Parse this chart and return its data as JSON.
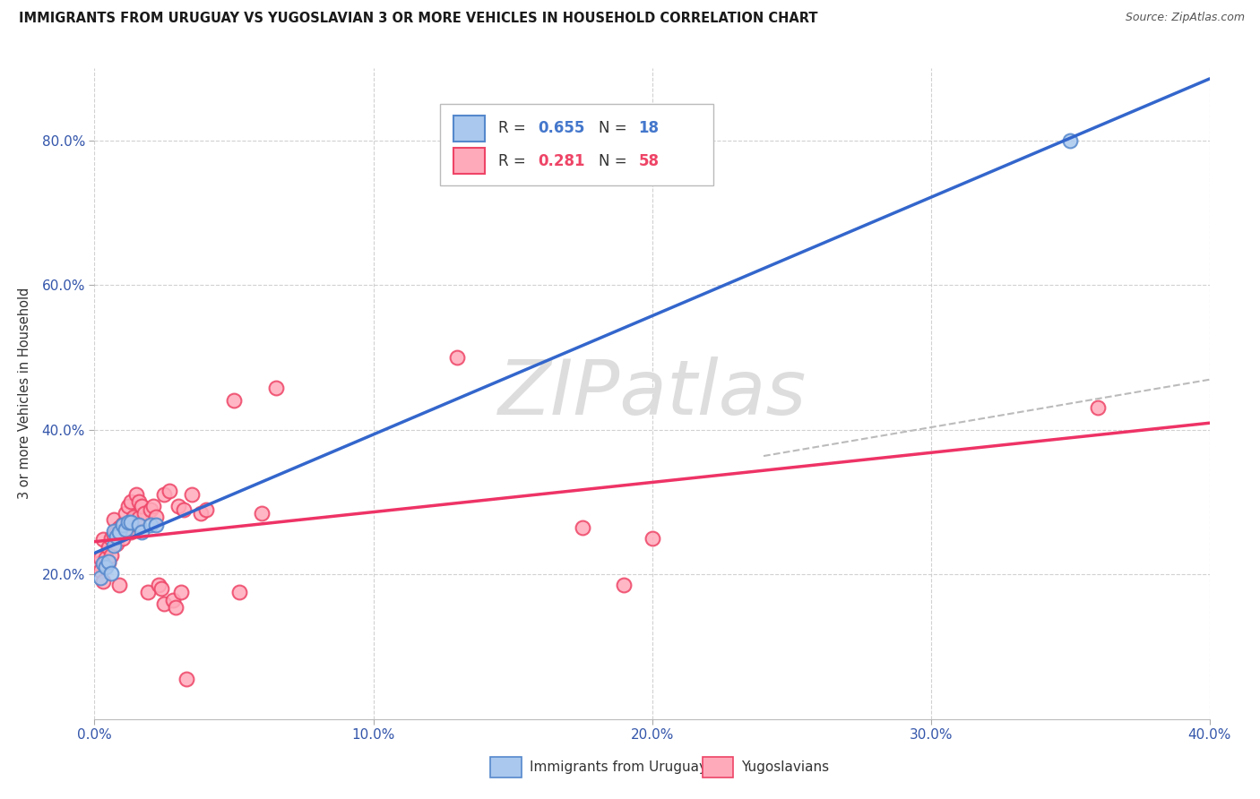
{
  "title": "IMMIGRANTS FROM URUGUAY VS YUGOSLAVIAN 3 OR MORE VEHICLES IN HOUSEHOLD CORRELATION CHART",
  "source": "Source: ZipAtlas.com",
  "ylabel": "3 or more Vehicles in Household",
  "xlim": [
    0.0,
    0.4
  ],
  "ylim": [
    0.0,
    0.9
  ],
  "xtick_vals": [
    0.0,
    0.1,
    0.2,
    0.3,
    0.4
  ],
  "xtick_labels": [
    "0.0%",
    "10.0%",
    "20.0%",
    "30.0%",
    "40.0%"
  ],
  "ytick_vals": [
    0.2,
    0.4,
    0.6,
    0.8
  ],
  "ytick_labels": [
    "20.0%",
    "40.0%",
    "60.0%",
    "80.0%"
  ],
  "blue_edge": "#5588CC",
  "blue_face": "#AAC8EE",
  "pink_edge": "#EE4466",
  "pink_face": "#FFAABB",
  "line_blue": "#3366CC",
  "line_pink": "#EE3366",
  "line_dash": "#BBBBBB",
  "grid_color": "#CCCCCC",
  "bg": "#FFFFFF",
  "watermark_color": "#DDDDDD",
  "legend1_r": "0.655",
  "legend1_n": "18",
  "legend2_r": "0.281",
  "legend2_n": "58",
  "legend_text_color": "#333333",
  "legend_num1_color": "#4477CC",
  "legend_num2_color": "#EE4466",
  "uruguay_x": [
    0.002,
    0.003,
    0.004,
    0.005,
    0.006,
    0.007,
    0.007,
    0.008,
    0.009,
    0.01,
    0.011,
    0.012,
    0.013,
    0.016,
    0.017,
    0.02,
    0.022,
    0.35
  ],
  "uruguay_y": [
    0.195,
    0.215,
    0.21,
    0.218,
    0.202,
    0.24,
    0.26,
    0.252,
    0.258,
    0.268,
    0.262,
    0.272,
    0.272,
    0.268,
    0.258,
    0.268,
    0.268,
    0.8
  ],
  "yugoslav_x": [
    0.001,
    0.002,
    0.002,
    0.003,
    0.003,
    0.004,
    0.004,
    0.005,
    0.005,
    0.006,
    0.006,
    0.007,
    0.007,
    0.008,
    0.008,
    0.009,
    0.009,
    0.01,
    0.01,
    0.011,
    0.011,
    0.012,
    0.013,
    0.013,
    0.014,
    0.015,
    0.015,
    0.016,
    0.016,
    0.017,
    0.018,
    0.019,
    0.02,
    0.021,
    0.022,
    0.023,
    0.024,
    0.025,
    0.025,
    0.027,
    0.028,
    0.029,
    0.03,
    0.031,
    0.032,
    0.033,
    0.035,
    0.038,
    0.04,
    0.05,
    0.052,
    0.06,
    0.065,
    0.13,
    0.175,
    0.19,
    0.2,
    0.36
  ],
  "yugoslav_y": [
    0.215,
    0.205,
    0.222,
    0.19,
    0.248,
    0.216,
    0.222,
    0.238,
    0.216,
    0.25,
    0.226,
    0.276,
    0.255,
    0.26,
    0.242,
    0.265,
    0.186,
    0.27,
    0.25,
    0.285,
    0.26,
    0.295,
    0.3,
    0.258,
    0.28,
    0.31,
    0.27,
    0.3,
    0.278,
    0.295,
    0.285,
    0.175,
    0.29,
    0.295,
    0.28,
    0.186,
    0.18,
    0.31,
    0.16,
    0.315,
    0.165,
    0.155,
    0.295,
    0.176,
    0.29,
    0.055,
    0.31,
    0.285,
    0.29,
    0.44,
    0.175,
    0.285,
    0.458,
    0.5,
    0.265,
    0.186,
    0.25,
    0.43
  ]
}
